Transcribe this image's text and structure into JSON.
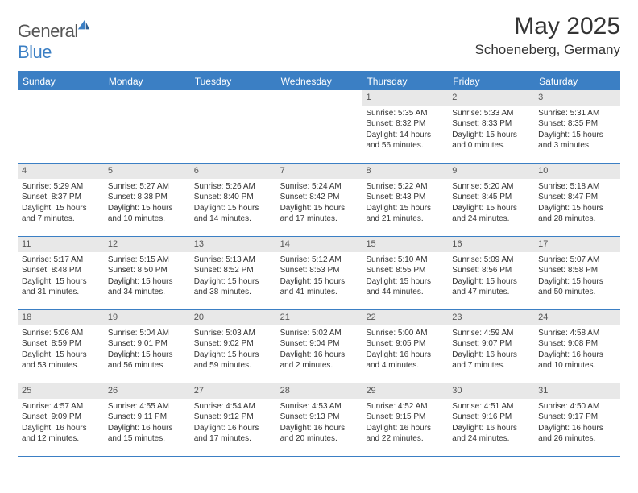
{
  "logo": {
    "word1": "General",
    "word2": "Blue"
  },
  "title": "May 2025",
  "location": "Schoeneberg, Germany",
  "colors": {
    "accent": "#3b7fc4",
    "daynum_bg": "#e8e8e8",
    "text": "#333333",
    "background": "#ffffff"
  },
  "days_of_week": [
    "Sunday",
    "Monday",
    "Tuesday",
    "Wednesday",
    "Thursday",
    "Friday",
    "Saturday"
  ],
  "weeks": [
    [
      {
        "n": "",
        "sr": "",
        "ss": "",
        "dl1": "",
        "dl2": "",
        "empty": true
      },
      {
        "n": "",
        "sr": "",
        "ss": "",
        "dl1": "",
        "dl2": "",
        "empty": true
      },
      {
        "n": "",
        "sr": "",
        "ss": "",
        "dl1": "",
        "dl2": "",
        "empty": true
      },
      {
        "n": "",
        "sr": "",
        "ss": "",
        "dl1": "",
        "dl2": "",
        "empty": true
      },
      {
        "n": "1",
        "sr": "Sunrise: 5:35 AM",
        "ss": "Sunset: 8:32 PM",
        "dl1": "Daylight: 14 hours",
        "dl2": "and 56 minutes."
      },
      {
        "n": "2",
        "sr": "Sunrise: 5:33 AM",
        "ss": "Sunset: 8:33 PM",
        "dl1": "Daylight: 15 hours",
        "dl2": "and 0 minutes."
      },
      {
        "n": "3",
        "sr": "Sunrise: 5:31 AM",
        "ss": "Sunset: 8:35 PM",
        "dl1": "Daylight: 15 hours",
        "dl2": "and 3 minutes."
      }
    ],
    [
      {
        "n": "4",
        "sr": "Sunrise: 5:29 AM",
        "ss": "Sunset: 8:37 PM",
        "dl1": "Daylight: 15 hours",
        "dl2": "and 7 minutes."
      },
      {
        "n": "5",
        "sr": "Sunrise: 5:27 AM",
        "ss": "Sunset: 8:38 PM",
        "dl1": "Daylight: 15 hours",
        "dl2": "and 10 minutes."
      },
      {
        "n": "6",
        "sr": "Sunrise: 5:26 AM",
        "ss": "Sunset: 8:40 PM",
        "dl1": "Daylight: 15 hours",
        "dl2": "and 14 minutes."
      },
      {
        "n": "7",
        "sr": "Sunrise: 5:24 AM",
        "ss": "Sunset: 8:42 PM",
        "dl1": "Daylight: 15 hours",
        "dl2": "and 17 minutes."
      },
      {
        "n": "8",
        "sr": "Sunrise: 5:22 AM",
        "ss": "Sunset: 8:43 PM",
        "dl1": "Daylight: 15 hours",
        "dl2": "and 21 minutes."
      },
      {
        "n": "9",
        "sr": "Sunrise: 5:20 AM",
        "ss": "Sunset: 8:45 PM",
        "dl1": "Daylight: 15 hours",
        "dl2": "and 24 minutes."
      },
      {
        "n": "10",
        "sr": "Sunrise: 5:18 AM",
        "ss": "Sunset: 8:47 PM",
        "dl1": "Daylight: 15 hours",
        "dl2": "and 28 minutes."
      }
    ],
    [
      {
        "n": "11",
        "sr": "Sunrise: 5:17 AM",
        "ss": "Sunset: 8:48 PM",
        "dl1": "Daylight: 15 hours",
        "dl2": "and 31 minutes."
      },
      {
        "n": "12",
        "sr": "Sunrise: 5:15 AM",
        "ss": "Sunset: 8:50 PM",
        "dl1": "Daylight: 15 hours",
        "dl2": "and 34 minutes."
      },
      {
        "n": "13",
        "sr": "Sunrise: 5:13 AM",
        "ss": "Sunset: 8:52 PM",
        "dl1": "Daylight: 15 hours",
        "dl2": "and 38 minutes."
      },
      {
        "n": "14",
        "sr": "Sunrise: 5:12 AM",
        "ss": "Sunset: 8:53 PM",
        "dl1": "Daylight: 15 hours",
        "dl2": "and 41 minutes."
      },
      {
        "n": "15",
        "sr": "Sunrise: 5:10 AM",
        "ss": "Sunset: 8:55 PM",
        "dl1": "Daylight: 15 hours",
        "dl2": "and 44 minutes."
      },
      {
        "n": "16",
        "sr": "Sunrise: 5:09 AM",
        "ss": "Sunset: 8:56 PM",
        "dl1": "Daylight: 15 hours",
        "dl2": "and 47 minutes."
      },
      {
        "n": "17",
        "sr": "Sunrise: 5:07 AM",
        "ss": "Sunset: 8:58 PM",
        "dl1": "Daylight: 15 hours",
        "dl2": "and 50 minutes."
      }
    ],
    [
      {
        "n": "18",
        "sr": "Sunrise: 5:06 AM",
        "ss": "Sunset: 8:59 PM",
        "dl1": "Daylight: 15 hours",
        "dl2": "and 53 minutes."
      },
      {
        "n": "19",
        "sr": "Sunrise: 5:04 AM",
        "ss": "Sunset: 9:01 PM",
        "dl1": "Daylight: 15 hours",
        "dl2": "and 56 minutes."
      },
      {
        "n": "20",
        "sr": "Sunrise: 5:03 AM",
        "ss": "Sunset: 9:02 PM",
        "dl1": "Daylight: 15 hours",
        "dl2": "and 59 minutes."
      },
      {
        "n": "21",
        "sr": "Sunrise: 5:02 AM",
        "ss": "Sunset: 9:04 PM",
        "dl1": "Daylight: 16 hours",
        "dl2": "and 2 minutes."
      },
      {
        "n": "22",
        "sr": "Sunrise: 5:00 AM",
        "ss": "Sunset: 9:05 PM",
        "dl1": "Daylight: 16 hours",
        "dl2": "and 4 minutes."
      },
      {
        "n": "23",
        "sr": "Sunrise: 4:59 AM",
        "ss": "Sunset: 9:07 PM",
        "dl1": "Daylight: 16 hours",
        "dl2": "and 7 minutes."
      },
      {
        "n": "24",
        "sr": "Sunrise: 4:58 AM",
        "ss": "Sunset: 9:08 PM",
        "dl1": "Daylight: 16 hours",
        "dl2": "and 10 minutes."
      }
    ],
    [
      {
        "n": "25",
        "sr": "Sunrise: 4:57 AM",
        "ss": "Sunset: 9:09 PM",
        "dl1": "Daylight: 16 hours",
        "dl2": "and 12 minutes."
      },
      {
        "n": "26",
        "sr": "Sunrise: 4:55 AM",
        "ss": "Sunset: 9:11 PM",
        "dl1": "Daylight: 16 hours",
        "dl2": "and 15 minutes."
      },
      {
        "n": "27",
        "sr": "Sunrise: 4:54 AM",
        "ss": "Sunset: 9:12 PM",
        "dl1": "Daylight: 16 hours",
        "dl2": "and 17 minutes."
      },
      {
        "n": "28",
        "sr": "Sunrise: 4:53 AM",
        "ss": "Sunset: 9:13 PM",
        "dl1": "Daylight: 16 hours",
        "dl2": "and 20 minutes."
      },
      {
        "n": "29",
        "sr": "Sunrise: 4:52 AM",
        "ss": "Sunset: 9:15 PM",
        "dl1": "Daylight: 16 hours",
        "dl2": "and 22 minutes."
      },
      {
        "n": "30",
        "sr": "Sunrise: 4:51 AM",
        "ss": "Sunset: 9:16 PM",
        "dl1": "Daylight: 16 hours",
        "dl2": "and 24 minutes."
      },
      {
        "n": "31",
        "sr": "Sunrise: 4:50 AM",
        "ss": "Sunset: 9:17 PM",
        "dl1": "Daylight: 16 hours",
        "dl2": "and 26 minutes."
      }
    ]
  ]
}
